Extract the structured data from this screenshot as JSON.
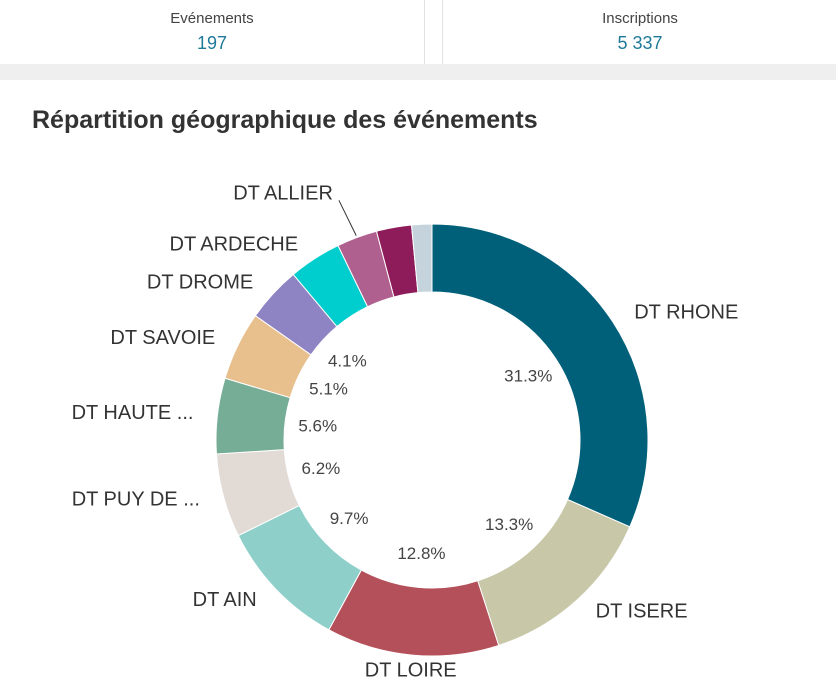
{
  "kpis": [
    {
      "label": "Evénements",
      "value": "197"
    },
    {
      "label": "Inscriptions",
      "value": "5 337"
    }
  ],
  "chart_data": {
    "type": "donut",
    "title": "Répartition géographique des événements",
    "categories": [
      "DT RHONE",
      "DT ISERE",
      "DT LOIRE",
      "DT AIN",
      "DT PUY DE ...",
      "DT HAUTE ...",
      "DT SAVOIE",
      "DT DROME",
      "DT ARDECHE",
      "DT ALLIER",
      null,
      null
    ],
    "values": [
      31.3,
      13.3,
      12.8,
      9.7,
      6.2,
      5.6,
      5.1,
      4.1,
      3.9,
      3.0,
      2.6,
      1.5
    ],
    "value_labels": [
      "31.3%",
      "13.3%",
      "12.8%",
      "9.7%",
      "6.2%",
      "5.6%",
      "5.1%",
      "4.1%",
      null,
      null,
      null,
      null
    ],
    "colors": [
      "#00607a",
      "#c8c8a9",
      "#b4505a",
      "#8ecfca",
      "#e2dad5",
      "#76ad96",
      "#e8c08e",
      "#8e84c4",
      "#00cdcd",
      "#b0608f",
      "#8e1b5a",
      "#c5d4dc"
    ]
  }
}
